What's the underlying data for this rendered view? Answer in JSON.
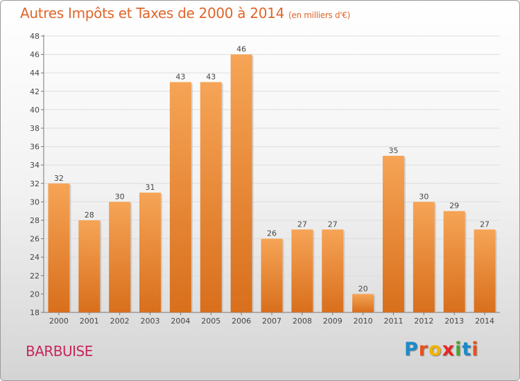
{
  "title": "Autres Impôts et Taxes de 2000 à 2014",
  "subtitle": "(en milliers d'€)",
  "commune": "BARBUISE",
  "logo": {
    "letters": [
      "P",
      "r",
      "o",
      "x",
      "i",
      "t",
      "i"
    ],
    "colors": [
      "#1c8ac9",
      "#e8501a",
      "#f2b300",
      "#e62626",
      "#47a532",
      "#1c8ac9",
      "#e8501a"
    ]
  },
  "colors": {
    "bar_top": "#f6a456",
    "bar_bottom": "#d86f1c",
    "title": "#e0652a",
    "commune": "#c8265a"
  },
  "chart_data": {
    "type": "bar",
    "categories": [
      "2000",
      "2001",
      "2002",
      "2003",
      "2004",
      "2005",
      "2006",
      "2007",
      "2008",
      "2009",
      "2010",
      "2011",
      "2012",
      "2013",
      "2014"
    ],
    "values": [
      32,
      28,
      30,
      31,
      43,
      43,
      46,
      26,
      27,
      27,
      20,
      35,
      30,
      29,
      27
    ],
    "ylim": [
      18,
      48
    ],
    "yticks": [
      18,
      20,
      22,
      24,
      26,
      28,
      30,
      32,
      34,
      36,
      38,
      40,
      42,
      44,
      46,
      48
    ],
    "grid": true,
    "xlabel": "",
    "ylabel": ""
  }
}
